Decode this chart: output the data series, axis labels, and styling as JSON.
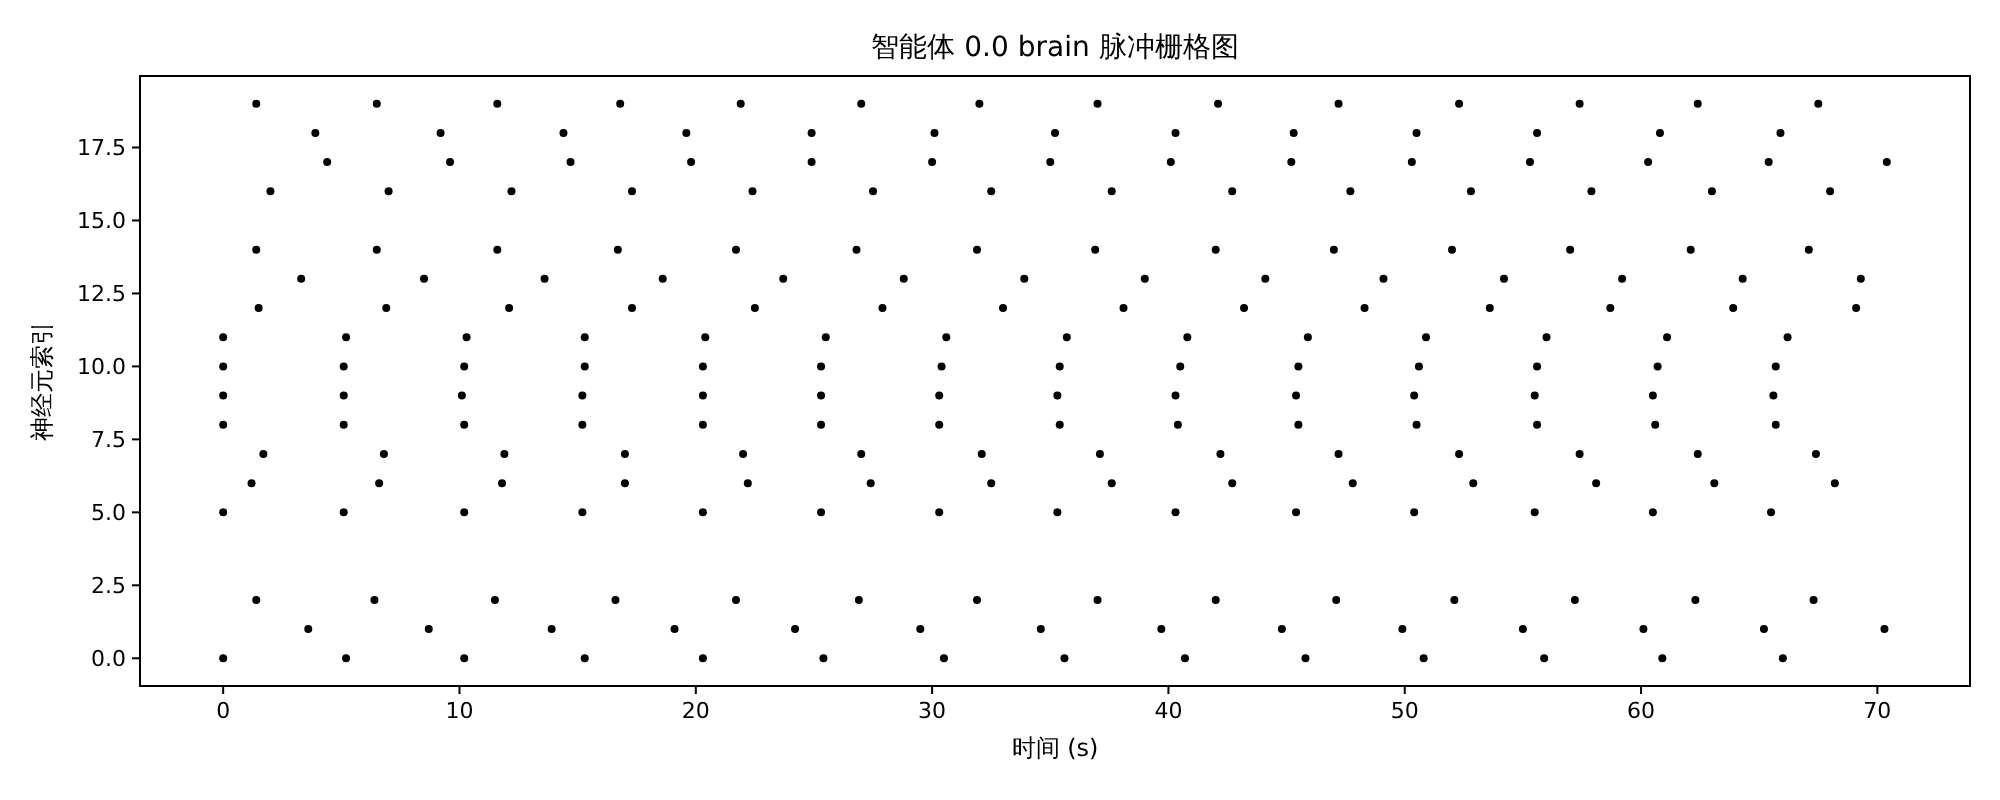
{
  "chart_data": {
    "type": "scatter",
    "title": "智能体 0.0 brain 脉冲栅格图",
    "xlabel": "时间 (s)",
    "ylabel": "神经元索引",
    "marker": "circle",
    "grid": false,
    "xlim": [
      -3.52,
      73.92
    ],
    "ylim": [
      -0.95,
      19.95
    ],
    "xticks": [
      0,
      10,
      20,
      30,
      40,
      50,
      60,
      70
    ],
    "yticks": [
      {
        "value": 0,
        "label": "0.0"
      },
      {
        "value": 2.5,
        "label": "2.5"
      },
      {
        "value": 5,
        "label": "5.0"
      },
      {
        "value": 7.5,
        "label": "7.5"
      },
      {
        "value": 10,
        "label": "10.0"
      },
      {
        "value": 12.5,
        "label": "12.5"
      },
      {
        "value": 15,
        "label": "15.0"
      },
      {
        "value": 17.5,
        "label": "17.5"
      }
    ],
    "series": [
      {
        "color": "#000000",
        "x": [
          0,
          5.2,
          10.2,
          15.3,
          20.3,
          25.4,
          30.5,
          35.6,
          40.7,
          45.8,
          50.8,
          55.9,
          60.9,
          66.0
        ],
        "values": [
          0,
          0,
          0,
          0,
          0,
          0,
          0,
          0,
          0,
          0,
          0,
          0,
          0,
          0
        ]
      },
      {
        "color": "#000000",
        "x": [
          3.6,
          8.7,
          13.9,
          19.1,
          24.2,
          29.5,
          34.6,
          39.7,
          44.8,
          49.9,
          55.0,
          60.1,
          65.2,
          70.3
        ],
        "values": [
          1,
          1,
          1,
          1,
          1,
          1,
          1,
          1,
          1,
          1,
          1,
          1,
          1,
          1
        ]
      },
      {
        "color": "#000000",
        "x": [
          1.4,
          6.4,
          11.5,
          16.6,
          21.7,
          26.9,
          31.9,
          37.0,
          42.0,
          47.1,
          52.1,
          57.2,
          62.3,
          67.3
        ],
        "values": [
          2,
          2,
          2,
          2,
          2,
          2,
          2,
          2,
          2,
          2,
          2,
          2,
          2,
          2
        ]
      },
      {
        "color": "#000000",
        "x": [
          0,
          5.1,
          10.2,
          15.2,
          20.3,
          25.3,
          30.3,
          35.3,
          40.3,
          45.4,
          50.4,
          55.5,
          60.5,
          65.5
        ],
        "values": [
          5,
          5,
          5,
          5,
          5,
          5,
          5,
          5,
          5,
          5,
          5,
          5,
          5,
          5
        ]
      },
      {
        "color": "#000000",
        "x": [
          1.2,
          6.6,
          11.8,
          17.0,
          22.2,
          27.4,
          32.5,
          37.6,
          42.7,
          47.8,
          52.9,
          58.1,
          63.1,
          68.2
        ],
        "values": [
          6,
          6,
          6,
          6,
          6,
          6,
          6,
          6,
          6,
          6,
          6,
          6,
          6,
          6
        ]
      },
      {
        "color": "#000000",
        "x": [
          1.7,
          6.8,
          11.9,
          17.0,
          22.0,
          27.0,
          32.1,
          37.1,
          42.2,
          47.2,
          52.3,
          57.4,
          62.4,
          67.4
        ],
        "values": [
          7,
          7,
          7,
          7,
          7,
          7,
          7,
          7,
          7,
          7,
          7,
          7,
          7,
          7
        ]
      },
      {
        "color": "#000000",
        "x": [
          0,
          5.1,
          10.2,
          15.2,
          20.3,
          25.3,
          30.3,
          35.4,
          40.4,
          45.5,
          50.5,
          55.6,
          60.6,
          65.7
        ],
        "values": [
          8,
          8,
          8,
          8,
          8,
          8,
          8,
          8,
          8,
          8,
          8,
          8,
          8,
          8
        ]
      },
      {
        "color": "#000000",
        "x": [
          0,
          5.1,
          10.1,
          15.2,
          20.3,
          25.3,
          30.3,
          35.3,
          40.3,
          45.4,
          50.4,
          55.5,
          60.5,
          65.6
        ],
        "values": [
          9,
          9,
          9,
          9,
          9,
          9,
          9,
          9,
          9,
          9,
          9,
          9,
          9,
          9
        ]
      },
      {
        "color": "#000000",
        "x": [
          0,
          5.1,
          10.2,
          15.3,
          20.3,
          25.3,
          30.4,
          35.4,
          40.5,
          45.5,
          50.6,
          55.6,
          60.7,
          65.7
        ],
        "values": [
          10,
          10,
          10,
          10,
          10,
          10,
          10,
          10,
          10,
          10,
          10,
          10,
          10,
          10
        ]
      },
      {
        "color": "#000000",
        "x": [
          0,
          5.2,
          10.3,
          15.3,
          20.4,
          25.5,
          30.6,
          35.7,
          40.8,
          45.9,
          50.9,
          56.0,
          61.1,
          66.2
        ],
        "values": [
          11,
          11,
          11,
          11,
          11,
          11,
          11,
          11,
          11,
          11,
          11,
          11,
          11,
          11
        ]
      },
      {
        "color": "#000000",
        "x": [
          1.5,
          6.9,
          12.1,
          17.3,
          22.5,
          27.9,
          33.0,
          38.1,
          43.2,
          48.3,
          53.6,
          58.7,
          63.9,
          69.1
        ],
        "values": [
          12,
          12,
          12,
          12,
          12,
          12,
          12,
          12,
          12,
          12,
          12,
          12,
          12,
          12
        ]
      },
      {
        "color": "#000000",
        "x": [
          3.3,
          8.5,
          13.6,
          18.6,
          23.7,
          28.8,
          33.9,
          39.0,
          44.1,
          49.1,
          54.2,
          59.2,
          64.3,
          69.3
        ],
        "values": [
          13,
          13,
          13,
          13,
          13,
          13,
          13,
          13,
          13,
          13,
          13,
          13,
          13,
          13
        ]
      },
      {
        "color": "#000000",
        "x": [
          1.4,
          6.5,
          11.6,
          16.7,
          21.7,
          26.8,
          31.9,
          36.9,
          42.0,
          47.0,
          52.0,
          57.0,
          62.1,
          67.1
        ],
        "values": [
          14,
          14,
          14,
          14,
          14,
          14,
          14,
          14,
          14,
          14,
          14,
          14,
          14,
          14
        ]
      },
      {
        "color": "#000000",
        "x": [
          2.0,
          7.0,
          12.2,
          17.3,
          22.4,
          27.5,
          32.5,
          37.6,
          42.7,
          47.7,
          52.8,
          57.9,
          63.0,
          68.0
        ],
        "values": [
          16,
          16,
          16,
          16,
          16,
          16,
          16,
          16,
          16,
          16,
          16,
          16,
          16,
          16
        ]
      },
      {
        "color": "#000000",
        "x": [
          4.4,
          9.6,
          14.7,
          19.8,
          24.9,
          30.0,
          35.0,
          40.1,
          45.2,
          50.3,
          55.3,
          60.3,
          65.4,
          70.4
        ],
        "values": [
          17,
          17,
          17,
          17,
          17,
          17,
          17,
          17,
          17,
          17,
          17,
          17,
          17,
          17
        ]
      },
      {
        "color": "#000000",
        "x": [
          3.9,
          9.2,
          14.4,
          19.6,
          24.9,
          30.1,
          35.2,
          40.3,
          45.3,
          50.5,
          55.6,
          60.8,
          65.9
        ],
        "values": [
          18,
          18,
          18,
          18,
          18,
          18,
          18,
          18,
          18,
          18,
          18,
          18,
          18
        ]
      },
      {
        "color": "#000000",
        "x": [
          1.4,
          6.5,
          11.6,
          16.8,
          21.9,
          27.0,
          32.0,
          37.0,
          42.1,
          47.2,
          52.3,
          57.4,
          62.4,
          67.5
        ],
        "values": [
          19,
          19,
          19,
          19,
          19,
          19,
          19,
          19,
          19,
          19,
          19,
          19,
          19,
          19
        ]
      }
    ]
  }
}
